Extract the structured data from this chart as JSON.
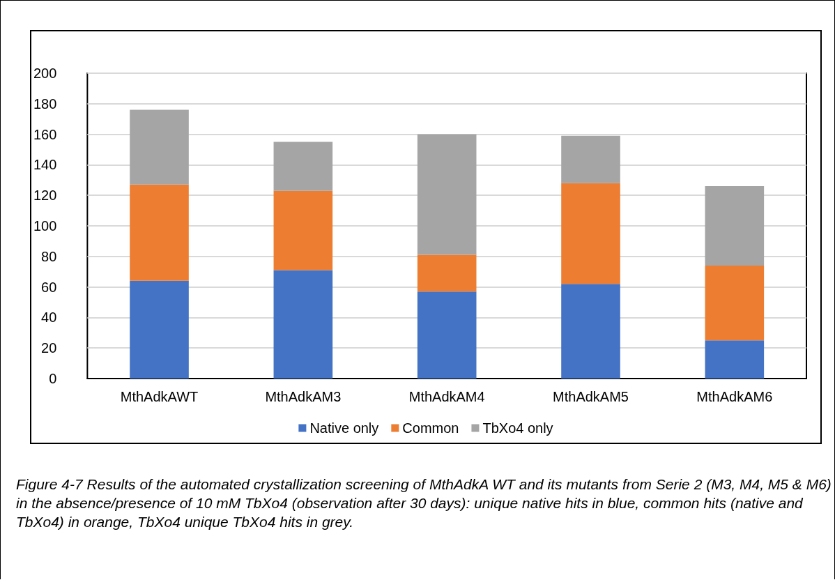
{
  "chart_data": {
    "type": "bar",
    "stacked": true,
    "categories": [
      "MthAdkAWT",
      "MthAdkAM3",
      "MthAdkAM4",
      "MthAdkAM5",
      "MthAdkAM6"
    ],
    "series": [
      {
        "name": "Native only",
        "color": "#4472c4",
        "values": [
          64,
          71,
          57,
          62,
          25
        ]
      },
      {
        "name": "Common",
        "color": "#ed7d31",
        "values": [
          63,
          52,
          24,
          66,
          49
        ]
      },
      {
        "name": "TbXo4 only",
        "color": "#a5a5a5",
        "values": [
          49,
          32,
          79,
          31,
          52
        ]
      }
    ],
    "ylim": [
      0,
      200
    ],
    "yticks": [
      0,
      20,
      40,
      60,
      80,
      100,
      120,
      140,
      160,
      180,
      200
    ],
    "grid": "y",
    "legend": "bottom",
    "annotations": [
      "Figure 4-7 Results of the automated crystallization screening of MthAdkA WT and its mutants from Serie 2 (M3, M4, M5 & M6) in the absence/presence of 10 mM TbXo4 (observation after 30 days): unique native hits in blue, common hits (native and TbXo4) in orange, TbXo4 unique TbXo4 hits in grey."
    ]
  }
}
